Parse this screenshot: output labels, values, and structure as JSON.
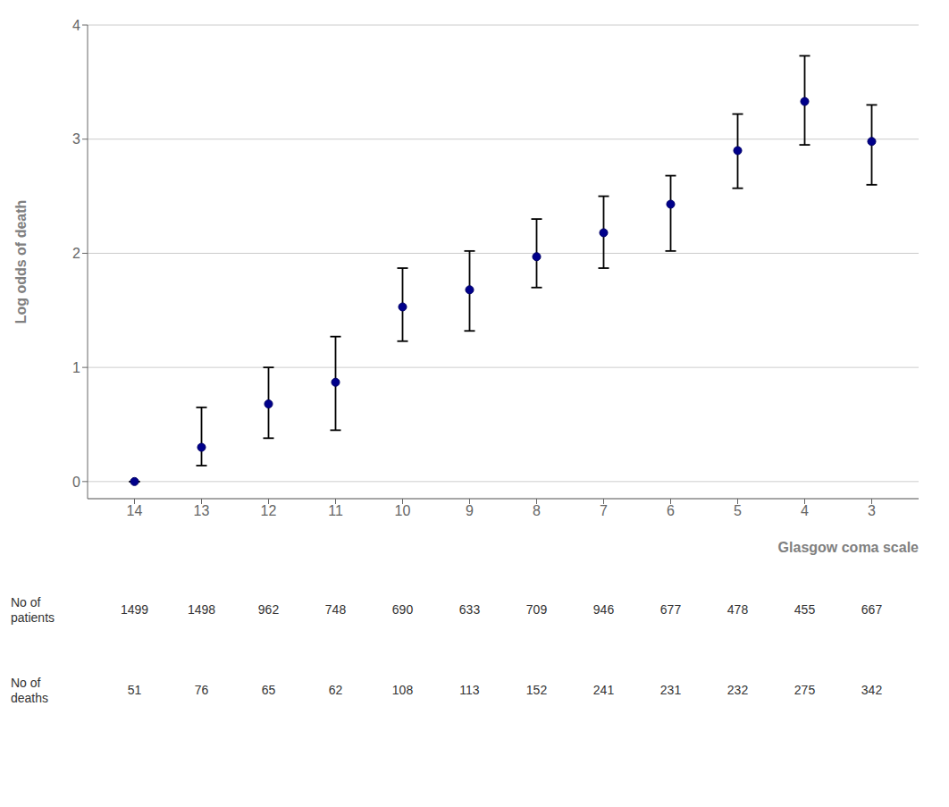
{
  "chart_data": {
    "type": "scatter",
    "x": [
      14,
      13,
      12,
      11,
      10,
      9,
      8,
      7,
      6,
      5,
      4,
      3
    ],
    "values": [
      0.0,
      0.3,
      0.68,
      0.87,
      1.53,
      1.68,
      1.97,
      2.18,
      2.43,
      2.9,
      3.33,
      2.98
    ],
    "err_lower": [
      0.0,
      0.14,
      0.38,
      0.45,
      1.23,
      1.32,
      1.7,
      1.87,
      2.02,
      2.57,
      2.95,
      2.6
    ],
    "err_upper": [
      0.0,
      0.65,
      1.0,
      1.27,
      1.87,
      2.02,
      2.3,
      2.5,
      2.68,
      3.22,
      3.73,
      3.3
    ],
    "color": "#00008B",
    "xlim": [
      14.7,
      2.3
    ],
    "xticks": [
      14,
      13,
      12,
      11,
      10,
      9,
      8,
      7,
      6,
      5,
      4,
      3
    ],
    "ylim": [
      -0.15,
      4.0
    ],
    "yticks": [
      0,
      1,
      2,
      3,
      4
    ],
    "grid": true,
    "xlabel": "Glasgow coma scale",
    "ylabel": "Log odds of death",
    "table": [
      {
        "label": "No of patients",
        "values": [
          1499,
          1498,
          962,
          748,
          690,
          633,
          709,
          946,
          677,
          478,
          455,
          667
        ]
      },
      {
        "label": "No of deaths",
        "values": [
          51,
          76,
          65,
          62,
          108,
          113,
          152,
          241,
          231,
          232,
          275,
          342
        ]
      }
    ]
  }
}
